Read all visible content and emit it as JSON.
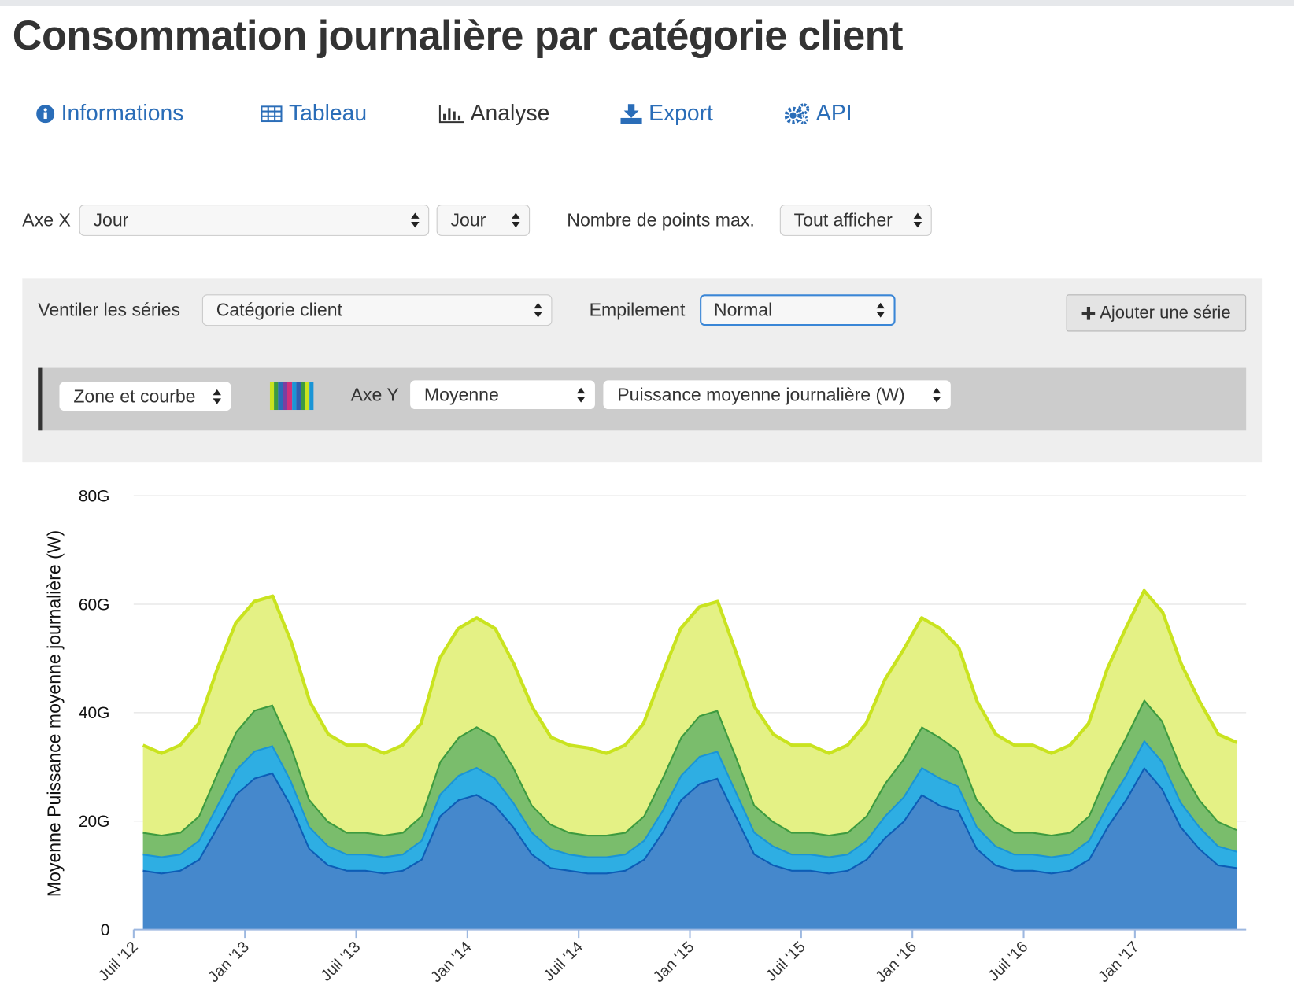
{
  "header": {
    "title": "Consommation journalière par catégorie client"
  },
  "nav": {
    "items": [
      "Informations",
      "Tableau",
      "Analyse",
      "Export",
      "API"
    ]
  },
  "controls": {
    "x_axis_label": "Axe X",
    "x_axis_field": "Jour",
    "x_axis_unit": "Jour",
    "max_points_label": "Nombre de points max.",
    "max_points": "Tout afficher",
    "breakdown_label": "Ventiler les séries",
    "breakdown": "Catégorie client",
    "stacking_label": "Empilement",
    "stacking": "Normal",
    "add_series": "Ajouter une série"
  },
  "series_controls": {
    "chart_type": "Zone et courbe",
    "y_axis_label": "Axe Y",
    "aggregation": "Moyenne",
    "field": "Puissance moyenne journalière (W)"
  },
  "chart_data": {
    "type": "area",
    "stacked": true,
    "grid": true,
    "y_label": "Moyenne Puissance moyenne journalière (W)",
    "x": [
      "2012-07",
      "2012-08",
      "2012-09",
      "2012-10",
      "2012-11",
      "2012-12",
      "2013-01",
      "2013-02",
      "2013-03",
      "2013-04",
      "2013-05",
      "2013-06",
      "2013-07",
      "2013-08",
      "2013-09",
      "2013-10",
      "2013-11",
      "2013-12",
      "2014-01",
      "2014-02",
      "2014-03",
      "2014-04",
      "2014-05",
      "2014-06",
      "2014-07",
      "2014-08",
      "2014-09",
      "2014-10",
      "2014-11",
      "2014-12",
      "2015-01",
      "2015-02",
      "2015-03",
      "2015-04",
      "2015-05",
      "2015-06",
      "2015-07",
      "2015-08",
      "2015-09",
      "2015-10",
      "2015-11",
      "2015-12",
      "2016-01",
      "2016-02",
      "2016-03",
      "2016-04",
      "2016-05",
      "2016-06",
      "2016-07",
      "2016-08",
      "2016-09",
      "2016-10",
      "2016-11",
      "2016-12",
      "2017-01",
      "2017-02",
      "2017-03",
      "2017-04",
      "2017-05",
      "2017-06"
    ],
    "xlim": [
      "2012-07",
      "2017-07"
    ],
    "xticks": [
      {
        "value": "2012-07",
        "label": "Juil '12"
      },
      {
        "value": "2013-01",
        "label": "Jan '13"
      },
      {
        "value": "2013-07",
        "label": "Juil '13"
      },
      {
        "value": "2014-01",
        "label": "Jan '14"
      },
      {
        "value": "2014-07",
        "label": "Juil '14"
      },
      {
        "value": "2015-01",
        "label": "Jan '15"
      },
      {
        "value": "2015-07",
        "label": "Juil '15"
      },
      {
        "value": "2016-01",
        "label": "Jan '16"
      },
      {
        "value": "2016-07",
        "label": "Juil '16"
      },
      {
        "value": "2017-01",
        "label": "Jan '17"
      }
    ],
    "ylim": [
      0,
      80
    ],
    "yticks": [
      0,
      {
        "value": 20,
        "label": "20G"
      },
      {
        "value": 40,
        "label": "40G"
      },
      {
        "value": 60,
        "label": "60G"
      },
      {
        "value": 80,
        "label": "80G"
      }
    ],
    "series": [
      {
        "color": "#4588cc",
        "line_color": "#0d5db6",
        "values": [
          11,
          10.5,
          11,
          13,
          19,
          25,
          28,
          29,
          23,
          15,
          12,
          11,
          11,
          10.5,
          11,
          13,
          21,
          24,
          25,
          23,
          19,
          14,
          11.5,
          11,
          10.5,
          10.5,
          11,
          13,
          18,
          24,
          27,
          28,
          21,
          14,
          12,
          11,
          11,
          10.5,
          11,
          13,
          17,
          20,
          25,
          23,
          22,
          15,
          12,
          11,
          11,
          10.5,
          11,
          13,
          19,
          24,
          30,
          26,
          19,
          15,
          12,
          11.5
        ]
      },
      {
        "color": "#2eaee3",
        "line_color": "#1a95d6",
        "values": [
          3,
          3,
          3,
          3.5,
          4,
          4.5,
          5,
          5,
          4.5,
          4,
          3.5,
          3,
          3,
          3,
          3,
          3.5,
          4,
          4.5,
          5,
          5,
          4.5,
          4,
          3.5,
          3,
          3,
          3,
          3,
          3.5,
          4,
          4.5,
          5,
          5,
          4.5,
          4,
          3.5,
          3,
          3,
          3,
          3,
          3.5,
          4,
          4.5,
          5,
          5,
          4.5,
          4,
          3.5,
          3,
          3,
          3,
          3,
          3.5,
          4,
          4.5,
          5,
          5,
          4.5,
          4,
          3.5,
          3
        ]
      },
      {
        "color": "#7abd6c",
        "line_color": "#3d9b3f",
        "values": [
          4,
          4,
          4,
          4.5,
          6,
          7,
          7.5,
          7.5,
          6.5,
          5,
          4.5,
          4,
          4,
          4,
          4,
          4.5,
          6,
          7,
          7.5,
          7.5,
          6.5,
          5,
          4.5,
          4,
          4,
          4,
          4,
          4.5,
          6,
          7,
          7.5,
          7.5,
          6.5,
          5,
          4.5,
          4,
          4,
          4,
          4,
          4.5,
          6,
          7,
          7.5,
          7.5,
          6.5,
          5,
          4.5,
          4,
          4,
          4,
          4,
          4.5,
          6,
          7,
          7.5,
          7.5,
          6.5,
          5,
          4.5,
          4
        ]
      },
      {
        "color": "#e4f185",
        "line_color": "#c9e31f",
        "values": [
          16,
          15,
          16,
          17,
          19,
          20,
          20,
          20,
          19,
          18,
          16,
          16,
          16,
          15,
          16,
          17,
          19,
          20,
          20,
          20,
          19,
          18,
          16,
          16,
          16,
          15,
          16,
          17,
          19,
          20,
          20,
          20,
          19,
          18,
          16,
          16,
          16,
          15,
          16,
          17,
          19,
          20,
          20,
          20,
          19,
          18,
          16,
          16,
          16,
          15,
          16,
          17,
          19,
          20,
          20,
          20,
          19,
          18,
          16,
          16
        ]
      }
    ]
  }
}
